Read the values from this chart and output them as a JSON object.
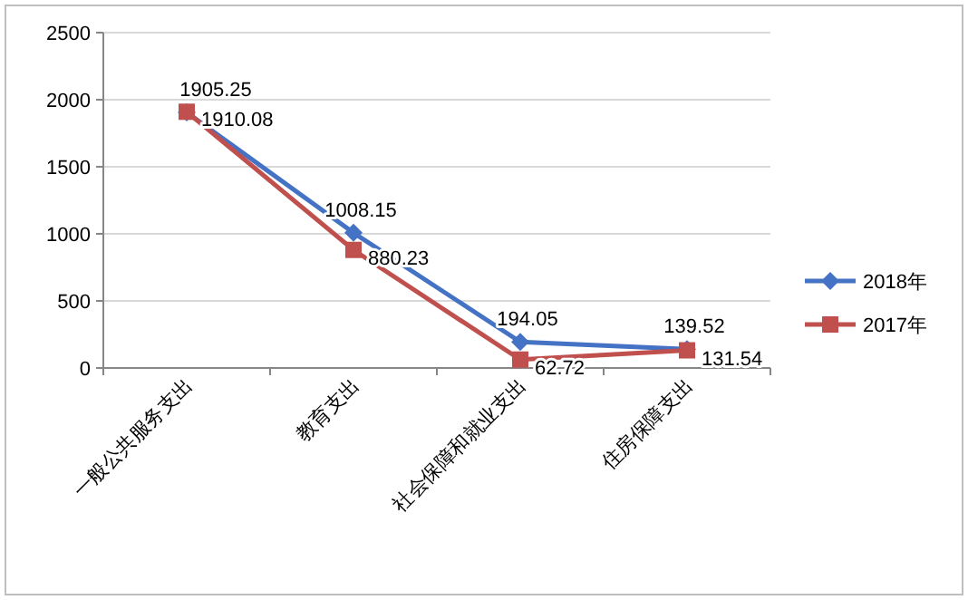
{
  "chart_data": {
    "type": "line",
    "categories": [
      "一般公共服务支出",
      "教育支出",
      "社会保障和就业支出",
      "住房保障支出"
    ],
    "series": [
      {
        "name": "2018年",
        "color": "#4472c4",
        "marker": "diamond",
        "values": [
          1905.25,
          1008.15,
          194.05,
          139.52
        ]
      },
      {
        "name": "2017年",
        "color": "#c0504d",
        "marker": "square",
        "values": [
          1910.08,
          880.23,
          62.72,
          131.54
        ]
      }
    ],
    "ylim": [
      0,
      2500
    ],
    "yticks": [
      0,
      500,
      1000,
      1500,
      2000,
      2500
    ],
    "grid": "y",
    "legend": "right",
    "data_labels": true
  }
}
